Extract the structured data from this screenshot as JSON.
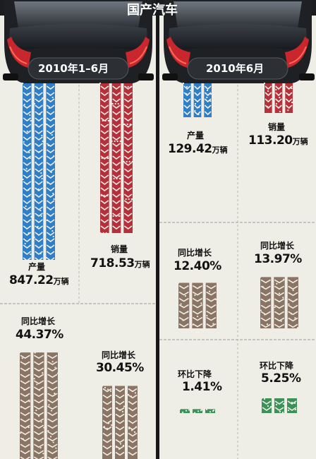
{
  "title": "国产汽车",
  "colors": {
    "production": "#2f7fc8",
    "sales": "#b5303a",
    "yoy": "#8a7463",
    "mom": "#3b9158",
    "background": "#efeee6",
    "car_body": "#1e2023"
  },
  "icons": [
    "car-icon",
    "tire-track-icon"
  ],
  "panels": [
    {
      "header": "2010年1–6月",
      "production": {
        "label": "产量",
        "value": "847.22",
        "unit": "万辆"
      },
      "sales": {
        "label": "销量",
        "value": "718.53",
        "unit": "万辆"
      },
      "production_yoy": {
        "label": "同比增长",
        "value": "44.37%"
      },
      "sales_yoy": {
        "label": "同比增长",
        "value": "30.45%"
      }
    },
    {
      "header": "2010年6月",
      "production": {
        "label": "产量",
        "value": "129.42",
        "unit": "万辆"
      },
      "sales": {
        "label": "销量",
        "value": "113.20",
        "unit": "万辆"
      },
      "production_yoy": {
        "label": "同比增长",
        "value": "12.40%"
      },
      "sales_yoy": {
        "label": "同比增长",
        "value": "13.97%"
      },
      "production_mom": {
        "label": "环比下降",
        "value": "1.41%"
      },
      "sales_mom": {
        "label": "环比下降",
        "value": "5.25%"
      }
    }
  ],
  "chart_data": [
    {
      "type": "bar",
      "title": "2010年1–6月",
      "categories": [
        "产量",
        "销量"
      ],
      "values": [
        847.22,
        718.53
      ],
      "unit": "万辆",
      "yoy_growth_percent": [
        44.37,
        30.45
      ]
    },
    {
      "type": "bar",
      "title": "2010年6月",
      "categories": [
        "产量",
        "销量"
      ],
      "values": [
        129.42,
        113.2
      ],
      "unit": "万辆",
      "yoy_growth_percent": [
        12.4,
        13.97
      ],
      "mom_decline_percent": [
        1.41,
        5.25
      ]
    }
  ]
}
